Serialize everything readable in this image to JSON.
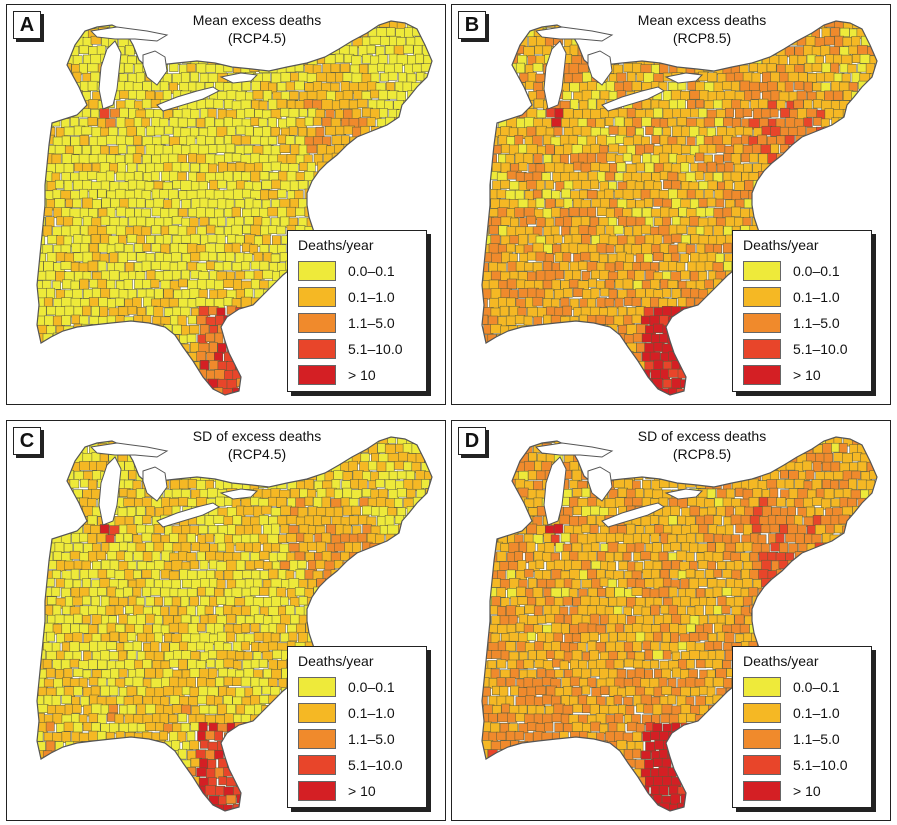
{
  "panels": [
    {
      "letter": "A",
      "title_line1": "Mean excess deaths",
      "title_line2": "(RCP4.5)",
      "intensity": 0.25
    },
    {
      "letter": "B",
      "title_line1": "Mean excess deaths",
      "title_line2": "(RCP8.5)",
      "intensity": 0.55
    },
    {
      "letter": "C",
      "title_line1": "SD of excess deaths",
      "title_line2": "(RCP4.5)",
      "intensity": 0.35
    },
    {
      "letter": "D",
      "title_line1": "SD of excess deaths",
      "title_line2": "(RCP8.5)",
      "intensity": 0.6
    }
  ],
  "legend": {
    "title": "Deaths/year",
    "entries": [
      {
        "label": "0.0–0.1",
        "color": "#eeea3a"
      },
      {
        "label": "0.1–1.0",
        "color": "#f5b824"
      },
      {
        "label": "1.1–5.0",
        "color": "#f08a2c"
      },
      {
        "label": "5.1–10.0",
        "color": "#e8452a"
      },
      {
        "label": "> 10",
        "color": "#d41f24"
      }
    ]
  },
  "colors": {
    "county_border": "#5a5a3a",
    "water": "#ffffff",
    "outline": "#222222"
  }
}
